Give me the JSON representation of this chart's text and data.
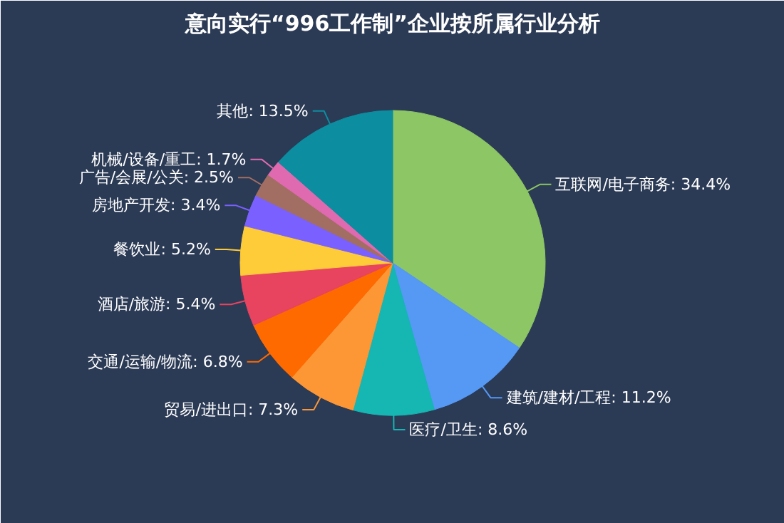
{
  "chart_data": {
    "type": "pie",
    "title": "意向实行“996工作制”企业按所属行业分析",
    "categories": [
      "互联网/电子商务",
      "建筑/建材/工程",
      "医疗/卫生",
      "贸易/进出口",
      "交通/运输/物流",
      "酒店/旅游",
      "餐饮业",
      "房地产开发",
      "广告/会展/公关",
      "机械/设备/重工",
      "其他"
    ],
    "values": [
      34.4,
      11.2,
      8.6,
      7.3,
      6.8,
      5.4,
      5.2,
      3.4,
      2.5,
      1.7,
      13.5
    ],
    "colors": [
      "#8dc664",
      "#5599f5",
      "#16b6b3",
      "#fd9735",
      "#ff6a00",
      "#e8435f",
      "#fecb39",
      "#7a61ff",
      "#a26e63",
      "#e06ab0",
      "#0c8da0"
    ],
    "value_labels": [
      "34.4%",
      "11.2%",
      "8.6%",
      "7.3%",
      "6.8%",
      "5.4%",
      "5.2%",
      "3.4%",
      "2.5%",
      "1.7%",
      "13.5%"
    ]
  }
}
